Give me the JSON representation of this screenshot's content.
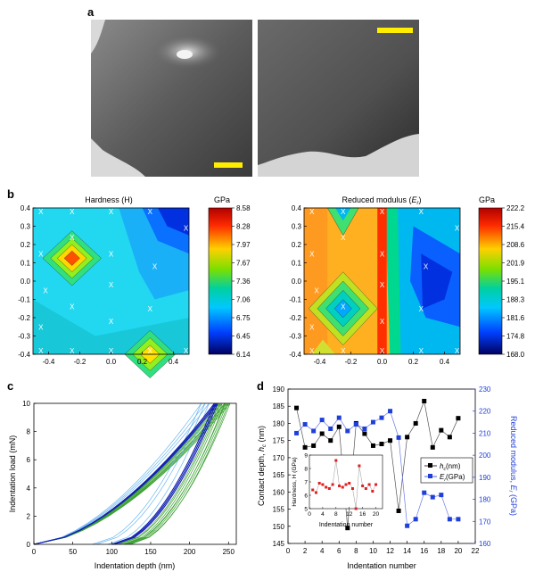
{
  "panel_labels": {
    "a": "a",
    "b": "b",
    "c": "c",
    "d": "d"
  },
  "colorbar_unit": "GPa",
  "chart_data": [
    {
      "type": "heatmap",
      "panel": "b-left",
      "title": "Hardness (H)",
      "xlim": [
        -0.5,
        0.5
      ],
      "ylim": [
        -0.4,
        0.4
      ],
      "xticks": [
        "-0.4",
        "-0.2",
        "0.0",
        "0.2",
        "0.4"
      ],
      "yticks": [
        "0.4",
        "0.3",
        "0.2",
        "0.1",
        "0.0",
        "-0.1",
        "-0.2",
        "-0.3",
        "-0.4"
      ],
      "colorbar_ticks": [
        "8.58",
        "8.28",
        "7.97",
        "7.67",
        "7.36",
        "7.06",
        "6.75",
        "6.45",
        "6.14"
      ],
      "colorbar_range": [
        6.14,
        8.58
      ]
    },
    {
      "type": "heatmap",
      "panel": "b-right",
      "title": "Reduced modulus (Er)",
      "xlim": [
        -0.5,
        0.5
      ],
      "ylim": [
        -0.4,
        0.4
      ],
      "xticks": [
        "-0.4",
        "-0.2",
        "0.0",
        "0.2",
        "0.4"
      ],
      "yticks": [
        "0.4",
        "0.3",
        "0.2",
        "0.1",
        "0.0",
        "-0.1",
        "-0.2",
        "-0.3",
        "-0.4"
      ],
      "colorbar_ticks": [
        "222.2",
        "215.4",
        "208.6",
        "201.9",
        "195.1",
        "188.3",
        "181.6",
        "174.8",
        "168.0"
      ],
      "colorbar_range": [
        168.0,
        222.2
      ]
    },
    {
      "type": "line",
      "panel": "c",
      "xlabel": "Indentation depth (nm)",
      "ylabel": "Indentation load (mN)",
      "xlim": [
        0,
        260
      ],
      "ylim": [
        0,
        10
      ],
      "xticks": [
        "0",
        "50",
        "100",
        "150",
        "200",
        "250"
      ],
      "yticks": [
        "0",
        "2",
        "4",
        "6",
        "8",
        "10"
      ]
    },
    {
      "type": "line",
      "panel": "d",
      "xlabel": "Indentation number",
      "ylabel": "Contact depth, hc (nm)",
      "y2label": "Reduced modulus, Er (GPa)",
      "xlim": [
        0,
        22
      ],
      "ylim": [
        145,
        190
      ],
      "y2lim": [
        160,
        230
      ],
      "xticks": [
        "0",
        "2",
        "4",
        "6",
        "8",
        "10",
        "12",
        "14",
        "16",
        "18",
        "20",
        "22"
      ],
      "yticks": [
        "190",
        "185",
        "180",
        "175",
        "170",
        "165",
        "160",
        "155",
        "150",
        "145"
      ],
      "y2ticks": [
        "230",
        "220",
        "210",
        "200",
        "190",
        "180",
        "170",
        "160"
      ],
      "x": [
        1,
        2,
        3,
        4,
        5,
        6,
        7,
        8,
        9,
        10,
        11,
        12,
        13,
        14,
        15,
        16,
        17,
        18,
        19,
        20
      ],
      "series": [
        {
          "name": "hc(nm)",
          "color": "#000000",
          "values": [
            184.5,
            173,
            173.5,
            177,
            175,
            179,
            149.5,
            180,
            177,
            173.5,
            174,
            175,
            154.5,
            176,
            180,
            186.5,
            173,
            178,
            176,
            181.5
          ]
        },
        {
          "name": "Er(GPa)",
          "color": "#1f3fd9",
          "values": [
            210,
            214,
            211,
            216,
            212,
            217,
            211,
            214,
            212,
            215,
            217,
            220,
            208,
            168,
            171,
            183,
            181,
            182,
            171,
            171
          ]
        }
      ],
      "inset": {
        "xlabel": "Indentation number",
        "ylabel": "Hardness, H (GPa)",
        "xlim": [
          0,
          22
        ],
        "ylim": [
          5,
          9
        ],
        "xticks": [
          "0",
          "4",
          "8",
          "12",
          "16",
          "20"
        ],
        "yticks": [
          "5",
          "6",
          "7",
          "8",
          "9"
        ],
        "color": "#e02020",
        "values": [
          6.4,
          6.2,
          6.9,
          6.8,
          6.6,
          6.5,
          6.8,
          8.6,
          6.7,
          6.6,
          6.8,
          6.9,
          6.5,
          5.0,
          8.2,
          6.7,
          6.5,
          6.8,
          6.3,
          6.8
        ]
      }
    }
  ]
}
